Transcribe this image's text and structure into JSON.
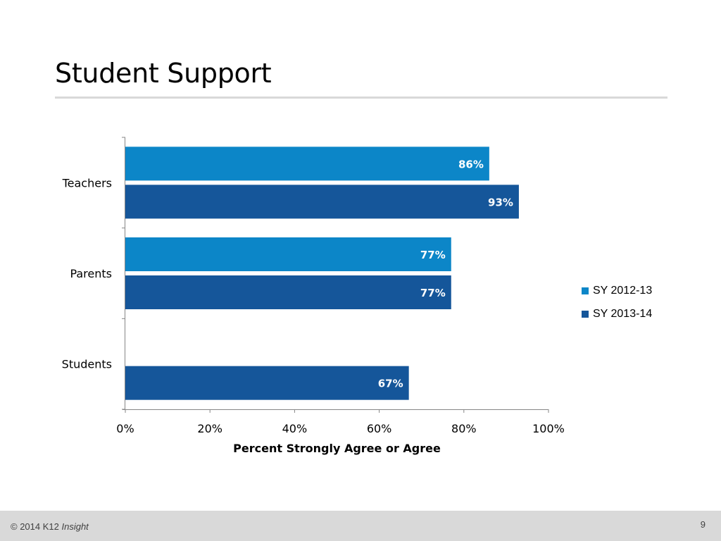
{
  "slide": {
    "title": "Student Support",
    "page_number": "9"
  },
  "footer": {
    "copyright": "© 2014 K12",
    "brand": "Insight"
  },
  "colors": {
    "sy_2012_13": "#0c86c8",
    "sy_2013_14": "#15569a",
    "footer_bg": "#d9d9d9"
  },
  "chart_data": {
    "type": "bar",
    "orientation": "horizontal",
    "categories": [
      "Teachers",
      "Parents",
      "Students"
    ],
    "series": [
      {
        "name": "SY 2012-13",
        "values": [
          86,
          77,
          null
        ],
        "labels": [
          "86%",
          "77%",
          ""
        ]
      },
      {
        "name": "SY 2013-14",
        "values": [
          93,
          77,
          67
        ],
        "labels": [
          "93%",
          "77%",
          "67%"
        ]
      }
    ],
    "xlabel": "Percent Strongly Agree or Agree",
    "xlim": [
      0,
      100
    ],
    "xticks": [
      "0%",
      "20%",
      "40%",
      "60%",
      "80%",
      "100%"
    ],
    "legend_position": "right",
    "grid": false
  }
}
